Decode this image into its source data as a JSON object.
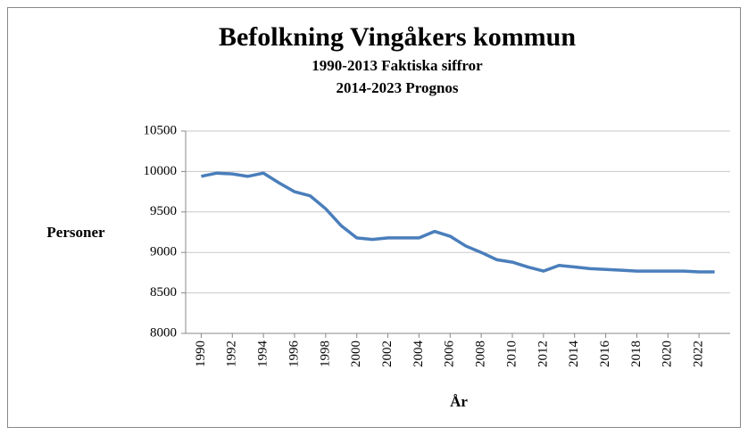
{
  "chart_data": {
    "type": "line",
    "title": "Befolkning Vingåkers kommun",
    "subtitle": [
      "1990-2013 Faktiska siffror",
      "2014-2023 Prognos"
    ],
    "y_label": "Personer",
    "x_label": "År",
    "x": [
      1990,
      1991,
      1992,
      1993,
      1994,
      1995,
      1996,
      1997,
      1998,
      1999,
      2000,
      2001,
      2002,
      2003,
      2004,
      2005,
      2006,
      2007,
      2008,
      2009,
      2010,
      2011,
      2012,
      2013,
      2014,
      2015,
      2016,
      2017,
      2018,
      2019,
      2020,
      2021,
      2022,
      2023
    ],
    "series": [
      {
        "name": "Befolkning",
        "color": "#4a7ebb",
        "values": [
          9940,
          9980,
          9970,
          9940,
          9980,
          9860,
          9750,
          9700,
          9540,
          9330,
          9180,
          9160,
          9180,
          9180,
          9180,
          9260,
          9200,
          9080,
          9000,
          8910,
          8880,
          8820,
          8770,
          8840,
          8820,
          8800,
          8790,
          8780,
          8770,
          8770,
          8770,
          8770,
          8760,
          8760
        ]
      }
    ],
    "xlim": [
      1989,
      2024
    ],
    "xticks": [
      1990,
      1992,
      1994,
      1996,
      1998,
      2000,
      2002,
      2004,
      2006,
      2008,
      2010,
      2012,
      2014,
      2016,
      2018,
      2020,
      2022
    ],
    "ylim": [
      8000,
      10500
    ],
    "yticks": [
      8000,
      8500,
      9000,
      9500,
      10000,
      10500
    ],
    "grid": true
  }
}
